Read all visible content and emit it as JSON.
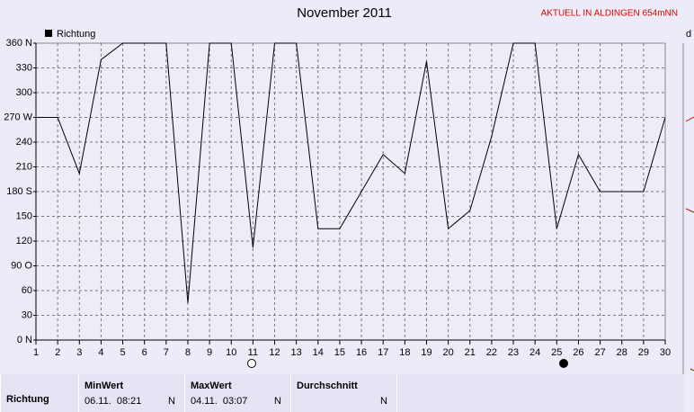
{
  "chart_data": {
    "type": "line",
    "title": "November 2011",
    "note": "AKTUELL IN ALDINGEN 654mNN",
    "x": [
      1,
      2,
      3,
      4,
      5,
      6,
      7,
      8,
      9,
      10,
      11,
      12,
      13,
      14,
      15,
      16,
      17,
      18,
      19,
      20,
      21,
      22,
      23,
      24,
      25,
      26,
      27,
      28,
      29,
      30
    ],
    "xlim": [
      1,
      30
    ],
    "xticks": [
      1,
      2,
      3,
      4,
      5,
      6,
      7,
      8,
      9,
      10,
      11,
      12,
      13,
      14,
      15,
      16,
      17,
      18,
      19,
      20,
      21,
      22,
      23,
      24,
      25,
      26,
      27,
      28,
      29,
      30
    ],
    "ylim": [
      0,
      360
    ],
    "yticks": [
      {
        "value": 0,
        "label": "0 N"
      },
      30,
      60,
      {
        "value": 90,
        "label": "90 O"
      },
      120,
      150,
      {
        "value": 180,
        "label": "180 S"
      },
      210,
      240,
      {
        "value": 270,
        "label": "270 W"
      },
      300,
      330,
      {
        "value": 360,
        "label": "360 N"
      }
    ],
    "grid": true,
    "legend": "top-left",
    "series": [
      {
        "name": "Richtung",
        "color": "#000000",
        "values": [
          270,
          270,
          202,
          340,
          360,
          360,
          360,
          45,
          360,
          360,
          112,
          360,
          360,
          135,
          135,
          180,
          225,
          202,
          338,
          135,
          157,
          247,
          360,
          360,
          135,
          225,
          180,
          180,
          180,
          270
        ]
      }
    ]
  },
  "summary": {
    "row_label": "Richtung",
    "columns": [
      {
        "header": "MinWert",
        "time": "06.11.  08:21",
        "value": "N"
      },
      {
        "header": "MaxWert",
        "time": "04.11.  03:07",
        "value": "N"
      },
      {
        "header": "Durchschnitt",
        "value": "N"
      }
    ]
  }
}
